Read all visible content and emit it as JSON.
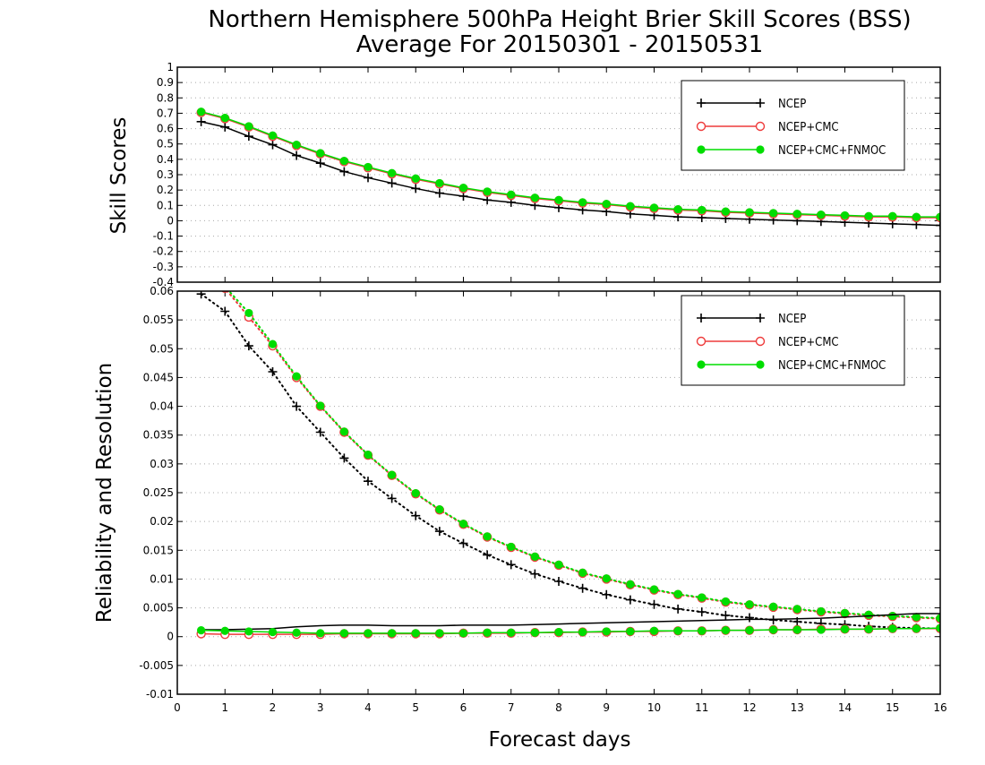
{
  "chart_data": {
    "type": "line",
    "title_line1": "Northern Hemisphere 500hPa Height Brier Skill Scores (BSS)",
    "title_line2": "Average For 20150301 - 20150531",
    "xlabel": "Forecast days",
    "x": [
      0.5,
      1,
      1.5,
      2,
      2.5,
      3,
      3.5,
      4,
      4.5,
      5,
      5.5,
      6,
      6.5,
      7,
      7.5,
      8,
      8.5,
      9,
      9.5,
      10,
      10.5,
      11,
      11.5,
      12,
      12.5,
      13,
      13.5,
      14,
      14.5,
      15,
      15.5,
      16
    ],
    "xlim": [
      0,
      16
    ],
    "xticks": [
      "0",
      "1",
      "2",
      "3",
      "4",
      "5",
      "6",
      "7",
      "8",
      "9",
      "10",
      "11",
      "12",
      "13",
      "14",
      "15",
      "16"
    ],
    "colors": {
      "ncep": "#000000",
      "ncep_cmc": "#ee3b3b",
      "fnmoc": "#00dd00",
      "grid": "#a8a8a8"
    },
    "panels": [
      {
        "ylabel": "Skill Scores",
        "ylim": [
          -0.4,
          1
        ],
        "yticks": [
          "-0.4",
          "-0.3",
          "-0.2",
          "-0.1",
          "0",
          "0.1",
          "0.2",
          "0.3",
          "0.4",
          "0.5",
          "0.6",
          "0.7",
          "0.8",
          "0.9",
          "1"
        ],
        "legend": [
          "NCEP",
          "NCEP+CMC",
          "NCEP+CMC+FNMOC"
        ],
        "series": [
          {
            "name": "NCEP",
            "style": "solid",
            "marker": "plus",
            "color": "#000000",
            "values": [
              0.645,
              0.61,
              0.55,
              0.495,
              0.425,
              0.375,
              0.32,
              0.28,
              0.245,
              0.21,
              0.18,
              0.16,
              0.135,
              0.12,
              0.1,
              0.085,
              0.07,
              0.06,
              0.045,
              0.035,
              0.025,
              0.02,
              0.015,
              0.01,
              0.005,
              0.0,
              -0.005,
              -0.01,
              -0.015,
              -0.02,
              -0.025,
              -0.03
            ]
          },
          {
            "name": "NCEP+CMC",
            "style": "solid",
            "marker": "open-circle",
            "color": "#ee3b3b",
            "values": [
              0.705,
              0.665,
              0.61,
              0.55,
              0.49,
              0.435,
              0.385,
              0.345,
              0.305,
              0.27,
              0.24,
              0.21,
              0.185,
              0.165,
              0.145,
              0.13,
              0.115,
              0.105,
              0.09,
              0.08,
              0.07,
              0.065,
              0.055,
              0.05,
              0.045,
              0.04,
              0.035,
              0.03,
              0.025,
              0.025,
              0.02,
              0.02
            ]
          },
          {
            "name": "NCEP+CMC+FNMOC",
            "style": "solid",
            "marker": "filled-circle",
            "color": "#00dd00",
            "values": [
              0.71,
              0.67,
              0.615,
              0.555,
              0.495,
              0.44,
              0.39,
              0.35,
              0.31,
              0.275,
              0.245,
              0.215,
              0.19,
              0.17,
              0.15,
              0.135,
              0.12,
              0.11,
              0.095,
              0.085,
              0.075,
              0.07,
              0.06,
              0.055,
              0.05,
              0.045,
              0.04,
              0.035,
              0.03,
              0.03,
              0.025,
              0.025
            ]
          }
        ]
      },
      {
        "ylabel": "Reliability and Resolution",
        "ylim": [
          -0.01,
          0.06
        ],
        "yticks": [
          "-0.01",
          "-0.005",
          "0",
          "0.005",
          "0.01",
          "0.015",
          "0.02",
          "0.025",
          "0.03",
          "0.035",
          "0.04",
          "0.045",
          "0.05",
          "0.055",
          "0.06"
        ],
        "legend": [
          "NCEP",
          "NCEP+CMC",
          "NCEP+CMC+FNMOC"
        ],
        "series": [
          {
            "name": "NCEP",
            "quantity": "resolution",
            "style": "dotted",
            "marker": "plus",
            "color": "#000000",
            "values": [
              0.0595,
              0.0565,
              0.0505,
              0.046,
              0.04,
              0.0355,
              0.031,
              0.027,
              0.024,
              0.021,
              0.0183,
              0.0162,
              0.0142,
              0.0125,
              0.0109,
              0.0096,
              0.0084,
              0.0073,
              0.0064,
              0.0056,
              0.0048,
              0.0043,
              0.0037,
              0.0033,
              0.0029,
              0.0026,
              0.0023,
              0.0021,
              0.0018,
              0.0016,
              0.0015,
              0.0014
            ]
          },
          {
            "name": "NCEP+CMC",
            "quantity": "resolution",
            "style": "dotted",
            "marker": "open-circle",
            "color": "#ee3b3b",
            "values": [
              0.0625,
              0.0605,
              0.0555,
              0.0505,
              0.045,
              0.04,
              0.0355,
              0.0315,
              0.028,
              0.0248,
              0.022,
              0.0195,
              0.0173,
              0.0155,
              0.0138,
              0.0124,
              0.011,
              0.01,
              0.009,
              0.0081,
              0.0073,
              0.0067,
              0.006,
              0.0055,
              0.0051,
              0.0047,
              0.0043,
              0.004,
              0.0037,
              0.0035,
              0.0033,
              0.0031
            ]
          },
          {
            "name": "NCEP+CMC+FNMOC",
            "quantity": "resolution",
            "style": "dotted",
            "marker": "filled-circle",
            "color": "#00dd00",
            "values": [
              0.0628,
              0.0608,
              0.0562,
              0.0508,
              0.0452,
              0.0401,
              0.0356,
              0.0316,
              0.0281,
              0.0249,
              0.0221,
              0.0196,
              0.0174,
              0.0156,
              0.0139,
              0.0125,
              0.0111,
              0.0101,
              0.0091,
              0.0082,
              0.0074,
              0.0068,
              0.0061,
              0.0056,
              0.0052,
              0.0048,
              0.0044,
              0.0041,
              0.0038,
              0.0036,
              0.0034,
              0.0032
            ]
          },
          {
            "name": "NCEP",
            "quantity": "reliability",
            "style": "solid",
            "marker": "none",
            "color": "#000000",
            "values": [
              0.0012,
              0.0012,
              0.0013,
              0.0014,
              0.0017,
              0.0019,
              0.002,
              0.002,
              0.0019,
              0.0019,
              0.0019,
              0.002,
              0.002,
              0.002,
              0.0021,
              0.0022,
              0.0023,
              0.0024,
              0.0025,
              0.0026,
              0.0027,
              0.0028,
              0.0029,
              0.003,
              0.003,
              0.0031,
              0.0032,
              0.0034,
              0.0036,
              0.0038,
              0.004,
              0.004
            ]
          },
          {
            "name": "NCEP+CMC",
            "quantity": "reliability",
            "style": "solid",
            "marker": "open-circle",
            "color": "#ee3b3b",
            "values": [
              0.0005,
              0.0004,
              0.0004,
              0.0004,
              0.0004,
              0.0004,
              0.0005,
              0.0005,
              0.0005,
              0.0005,
              0.0005,
              0.0006,
              0.0006,
              0.0006,
              0.0007,
              0.0007,
              0.0008,
              0.0008,
              0.0009,
              0.0009,
              0.001,
              0.001,
              0.0011,
              0.0011,
              0.0012,
              0.0012,
              0.0013,
              0.0013,
              0.0013,
              0.0014,
              0.0014,
              0.0014
            ]
          },
          {
            "name": "NCEP+CMC+FNMOC",
            "quantity": "reliability",
            "style": "solid",
            "marker": "filled-circle",
            "color": "#00dd00",
            "values": [
              0.0011,
              0.001,
              0.0009,
              0.0008,
              0.0007,
              0.0006,
              0.0006,
              0.0006,
              0.0006,
              0.0006,
              0.0006,
              0.0006,
              0.0007,
              0.0007,
              0.0007,
              0.0008,
              0.0008,
              0.0009,
              0.0009,
              0.001,
              0.001,
              0.001,
              0.0011,
              0.0011,
              0.0012,
              0.0012,
              0.0012,
              0.0013,
              0.0013,
              0.0014,
              0.0014,
              0.0015
            ]
          }
        ]
      }
    ]
  }
}
